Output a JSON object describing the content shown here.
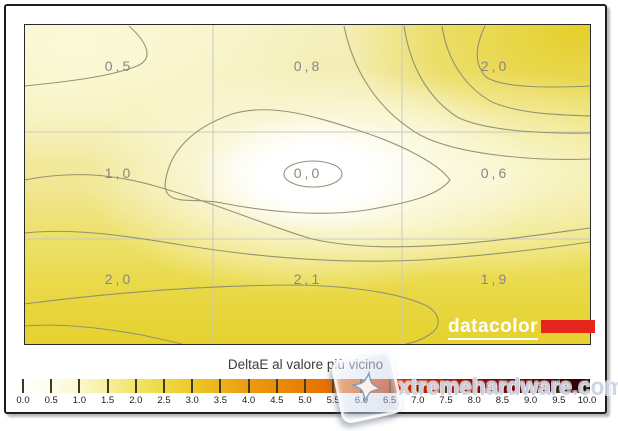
{
  "chart_data": {
    "type": "heatmap",
    "subtype": "contour-map",
    "title": "DeltaE al valore più vicino",
    "rows": 3,
    "cols": 3,
    "grid": true,
    "legend_position": "bottom",
    "cells": [
      {
        "row": 0,
        "col": 0,
        "label": "0,5",
        "value": 0.5
      },
      {
        "row": 0,
        "col": 1,
        "label": "0,8",
        "value": 0.8
      },
      {
        "row": 0,
        "col": 2,
        "label": "2,0",
        "value": 2.0
      },
      {
        "row": 1,
        "col": 0,
        "label": "1,0",
        "value": 1.0
      },
      {
        "row": 1,
        "col": 1,
        "label": "0,0",
        "value": 0.0
      },
      {
        "row": 1,
        "col": 2,
        "label": "0,6",
        "value": 0.6
      },
      {
        "row": 2,
        "col": 0,
        "label": "2,0",
        "value": 2.0
      },
      {
        "row": 2,
        "col": 1,
        "label": "2,1",
        "value": 2.1
      },
      {
        "row": 2,
        "col": 2,
        "label": "1,9",
        "value": 1.9
      }
    ],
    "colorbar": {
      "min": 0.0,
      "max": 10.0,
      "step": 0.5,
      "tick_labels": [
        "0.0",
        "0.5",
        "1.0",
        "1.5",
        "2.0",
        "2.5",
        "3.0",
        "3.5",
        "4.0",
        "4.5",
        "5.0",
        "5.5",
        "6.0",
        "6.5",
        "7.0",
        "7.5",
        "8.0",
        "8.5",
        "9.0",
        "9.5",
        "10.0"
      ],
      "stop_colors": [
        "#ffffff",
        "#fefdf0",
        "#fbf9d0",
        "#f7f0a0",
        "#f2e56e",
        "#eeda45",
        "#edca2b",
        "#edb31c",
        "#eb9d10",
        "#ea8c09",
        "#e87d05",
        "#e66b02",
        "#e25500",
        "#d63c00",
        "#c02800",
        "#a51a04",
        "#8c1006",
        "#740b08",
        "#5c0707",
        "#430404",
        "#250202"
      ]
    }
  },
  "branding": {
    "logo_text": "datacolor",
    "logo_accent_color": "#e8251d"
  },
  "watermark": {
    "text": "xtremehardware.com"
  }
}
